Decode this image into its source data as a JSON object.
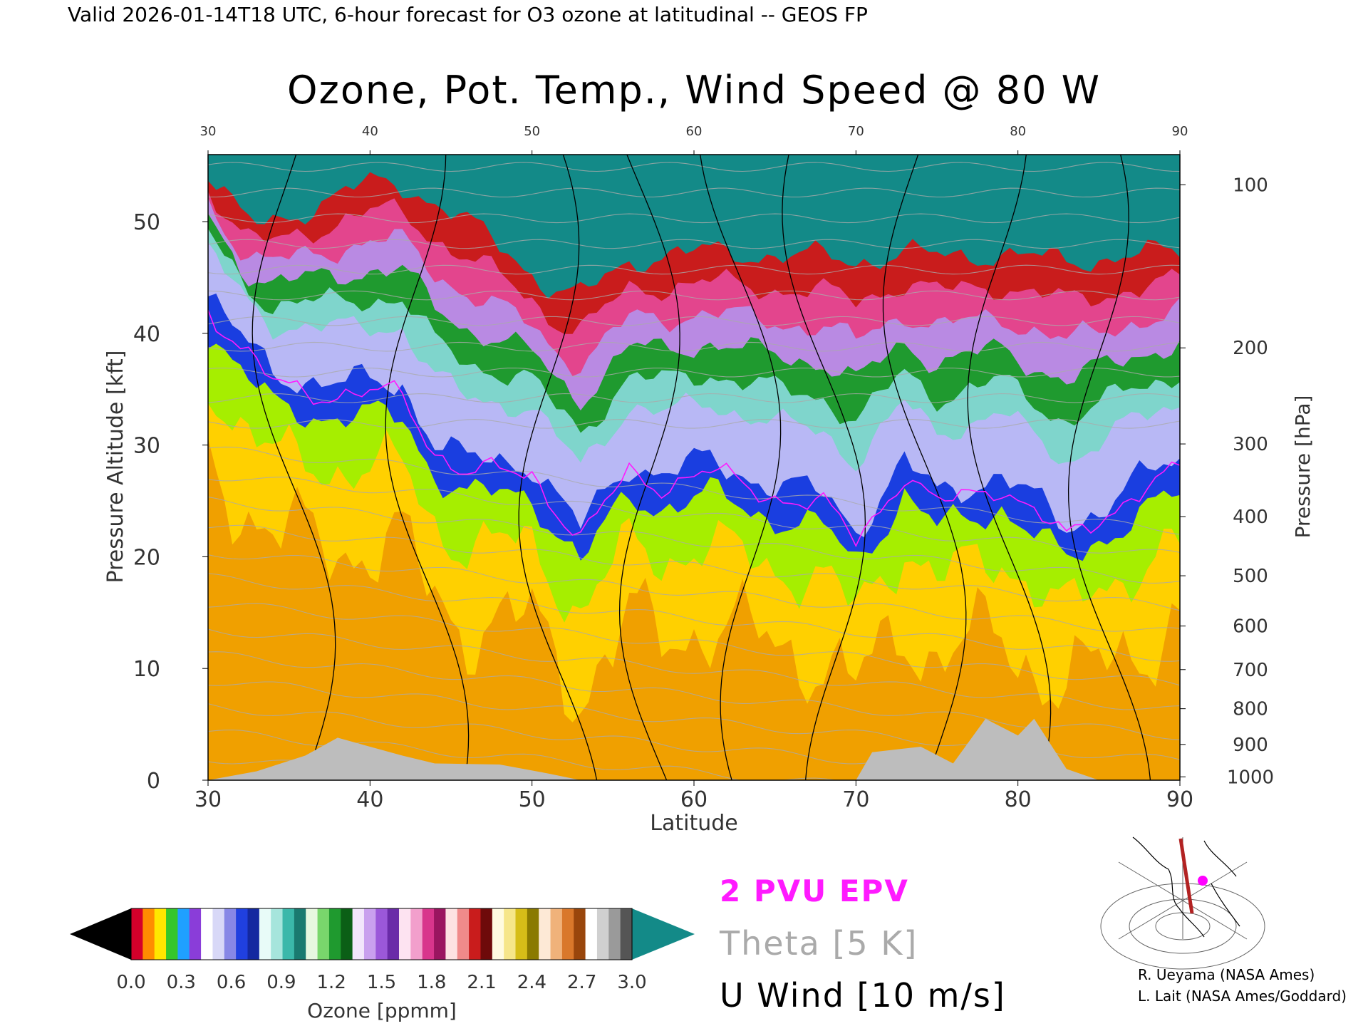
{
  "header": {
    "valid_line": "Valid 2026-01-14T18 UTC, 6-hour forecast for O3 ozone at latitudinal -- GEOS FP"
  },
  "chart_data": {
    "type": "heatmap",
    "title": "Ozone, Pot. Temp., Wind Speed @ 80 W",
    "xlabel": "Latitude",
    "ylabel_left": "Pressure Altitude [kft]",
    "ylabel_right": "Pressure [hPa]",
    "xlim": [
      30,
      90
    ],
    "ylim": [
      0,
      56
    ],
    "x_ticks": [
      30,
      40,
      50,
      60,
      70,
      80,
      90
    ],
    "y_ticks": [
      0,
      10,
      20,
      30,
      40,
      50
    ],
    "pressure_ticks": [
      {
        "label": "100",
        "kft": 53.3
      },
      {
        "label": "200",
        "kft": 38.7
      },
      {
        "label": "300",
        "kft": 30.1
      },
      {
        "label": "400",
        "kft": 23.6
      },
      {
        "label": "500",
        "kft": 18.3
      },
      {
        "label": "600",
        "kft": 13.8
      },
      {
        "label": "700",
        "kft": 9.9
      },
      {
        "label": "800",
        "kft": 6.4
      },
      {
        "label": "900",
        "kft": 3.2
      },
      {
        "label": "1000",
        "kft": 0.3
      }
    ],
    "ozone_colorbar": {
      "label": "Ozone [ppmm]",
      "tick_labels": [
        "0.0",
        "0.3",
        "0.6",
        "0.9",
        "1.2",
        "1.5",
        "1.8",
        "2.1",
        "2.4",
        "2.7",
        "3.0"
      ],
      "min_color": "#000000",
      "max_color": "#138a88"
    },
    "ozone_levels": [
      {
        "name": "< 0.3",
        "color": "#f0a000"
      },
      {
        "name": "0.3-0.6",
        "color": "#ffd000"
      },
      {
        "name": "0.6-0.9",
        "color": "#a6ee00"
      },
      {
        "name": "0.9-1.2",
        "color": "#1a3ee0"
      },
      {
        "name": "1.2-1.5",
        "color": "#b8b8f5"
      },
      {
        "name": "1.5-1.8",
        "color": "#7fd5cc"
      },
      {
        "name": "1.8-2.1",
        "color": "#1f9a2f"
      },
      {
        "name": "2.1-2.4",
        "color": "#b98ae3"
      },
      {
        "name": "2.4-2.7",
        "color": "#e3458d"
      },
      {
        "name": "2.7-3.0",
        "color": "#c91c1c"
      },
      {
        "name": "> 3.0",
        "color": "#138a88"
      }
    ],
    "tropopause_boundary_kft": [
      {
        "lat": 30,
        "kft": 42
      },
      {
        "lat": 32,
        "kft": 38
      },
      {
        "lat": 34,
        "kft": 35
      },
      {
        "lat": 38,
        "kft": 34
      },
      {
        "lat": 42,
        "kft": 34
      },
      {
        "lat": 44,
        "kft": 29
      },
      {
        "lat": 46,
        "kft": 27
      },
      {
        "lat": 50,
        "kft": 27
      },
      {
        "lat": 53,
        "kft": 21
      },
      {
        "lat": 56,
        "kft": 27
      },
      {
        "lat": 58,
        "kft": 26
      },
      {
        "lat": 61,
        "kft": 27
      },
      {
        "lat": 65,
        "kft": 25
      },
      {
        "lat": 68,
        "kft": 24
      },
      {
        "lat": 70,
        "kft": 21
      },
      {
        "lat": 73,
        "kft": 27
      },
      {
        "lat": 75,
        "kft": 24
      },
      {
        "lat": 79,
        "kft": 26
      },
      {
        "lat": 83,
        "kft": 21
      },
      {
        "lat": 87,
        "kft": 25
      },
      {
        "lat": 90,
        "kft": 27
      }
    ],
    "series": [
      {
        "name": "2 PVU EPV",
        "color": "#ff1aff"
      },
      {
        "name": "Theta [5 K]",
        "color": "#aaaaaa"
      },
      {
        "name": "U Wind [10 m/s]",
        "color": "#000000"
      }
    ],
    "terrain_kft": [
      {
        "lat": 30,
        "kft": 0
      },
      {
        "lat": 33,
        "kft": 0.8
      },
      {
        "lat": 36,
        "kft": 2.2
      },
      {
        "lat": 38,
        "kft": 3.8
      },
      {
        "lat": 40,
        "kft": 3.0
      },
      {
        "lat": 42,
        "kft": 2.2
      },
      {
        "lat": 44,
        "kft": 1.5
      },
      {
        "lat": 48,
        "kft": 1.4
      },
      {
        "lat": 51,
        "kft": 0.6
      },
      {
        "lat": 53,
        "kft": 0
      },
      {
        "lat": 70,
        "kft": 0
      },
      {
        "lat": 71,
        "kft": 2.5
      },
      {
        "lat": 74,
        "kft": 3.0
      },
      {
        "lat": 76,
        "kft": 1.5
      },
      {
        "lat": 78,
        "kft": 5.5
      },
      {
        "lat": 80,
        "kft": 4.0
      },
      {
        "lat": 81,
        "kft": 5.5
      },
      {
        "lat": 83,
        "kft": 1.0
      },
      {
        "lat": 85,
        "kft": 0
      }
    ]
  },
  "credits": [
    "R. Ueyama (NASA Ames)",
    "L. Lait (NASA Ames/Goddard)"
  ]
}
